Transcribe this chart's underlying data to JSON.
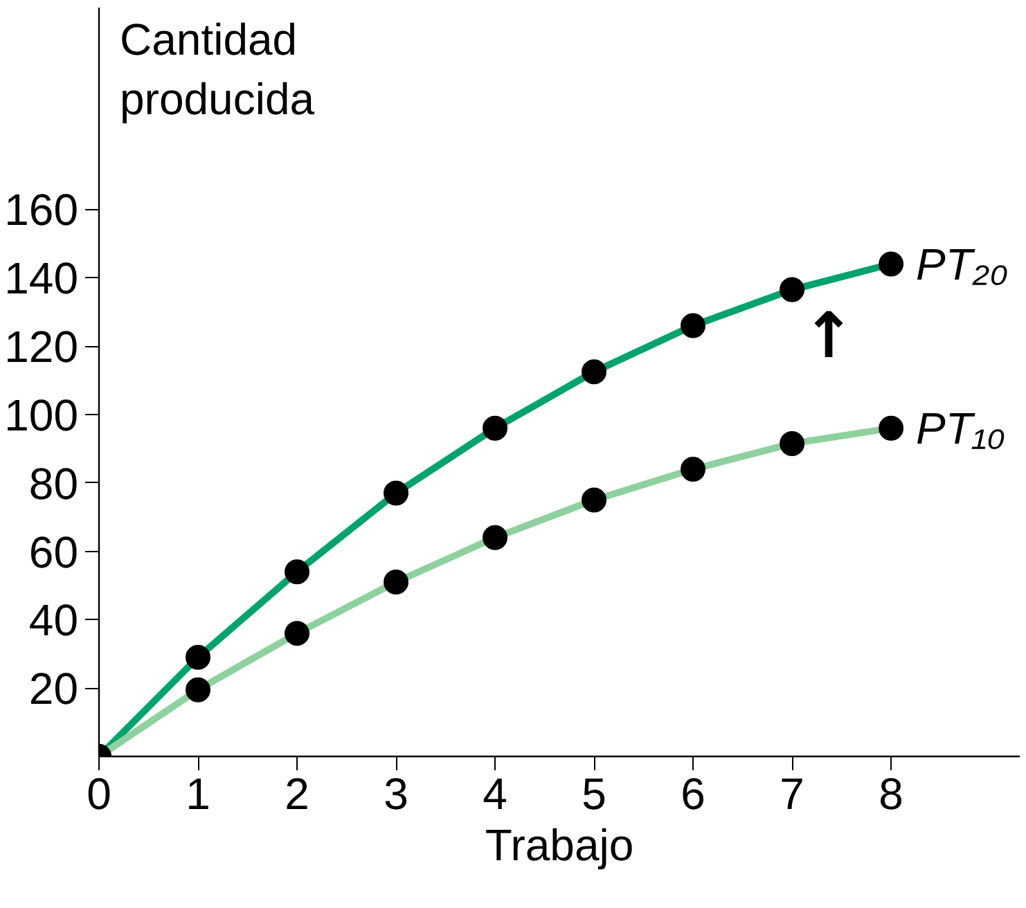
{
  "chart_data": {
    "type": "line",
    "xlabel": "Trabajo",
    "ylabel": "Cantidad\nproducida",
    "x": [
      0,
      1,
      2,
      3,
      4,
      5,
      6,
      7,
      8
    ],
    "series": [
      {
        "name": "PT₂₀",
        "color": "#00a36c",
        "values": [
          0,
          29,
          54,
          77,
          96,
          112.5,
          126,
          136.5,
          144
        ]
      },
      {
        "name": "PT₁₀",
        "color": "#8fd19e",
        "values": [
          0,
          19.5,
          36,
          51,
          64,
          75,
          84,
          91.5,
          96
        ]
      }
    ],
    "xlim": [
      0,
      9.3
    ],
    "ylim": [
      0,
      219
    ],
    "xticks": [
      0,
      1,
      2,
      3,
      4,
      5,
      6,
      7,
      8
    ],
    "yticks": [
      20,
      40,
      60,
      80,
      100,
      120,
      140,
      160
    ],
    "marker": "circle",
    "line_style": "solid",
    "grid": false,
    "annotations": [
      "↑"
    ]
  }
}
